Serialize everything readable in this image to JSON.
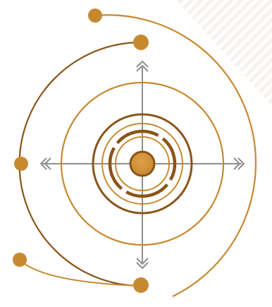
{
  "graphic": {
    "subject": "concentric-orbit-target",
    "colors": {
      "accent_light": "#D69A45",
      "accent_mid": "#C7892F",
      "accent_dark": "#8A5418",
      "crosshair": "#8E8E8E",
      "background_stripe": "#F7F1EA",
      "background": "#FFFFFF"
    },
    "icons": [
      "orbit-node-icon",
      "chevron-up-icon",
      "chevron-down-icon",
      "chevron-left-icon",
      "chevron-right-icon",
      "center-core-icon"
    ]
  }
}
